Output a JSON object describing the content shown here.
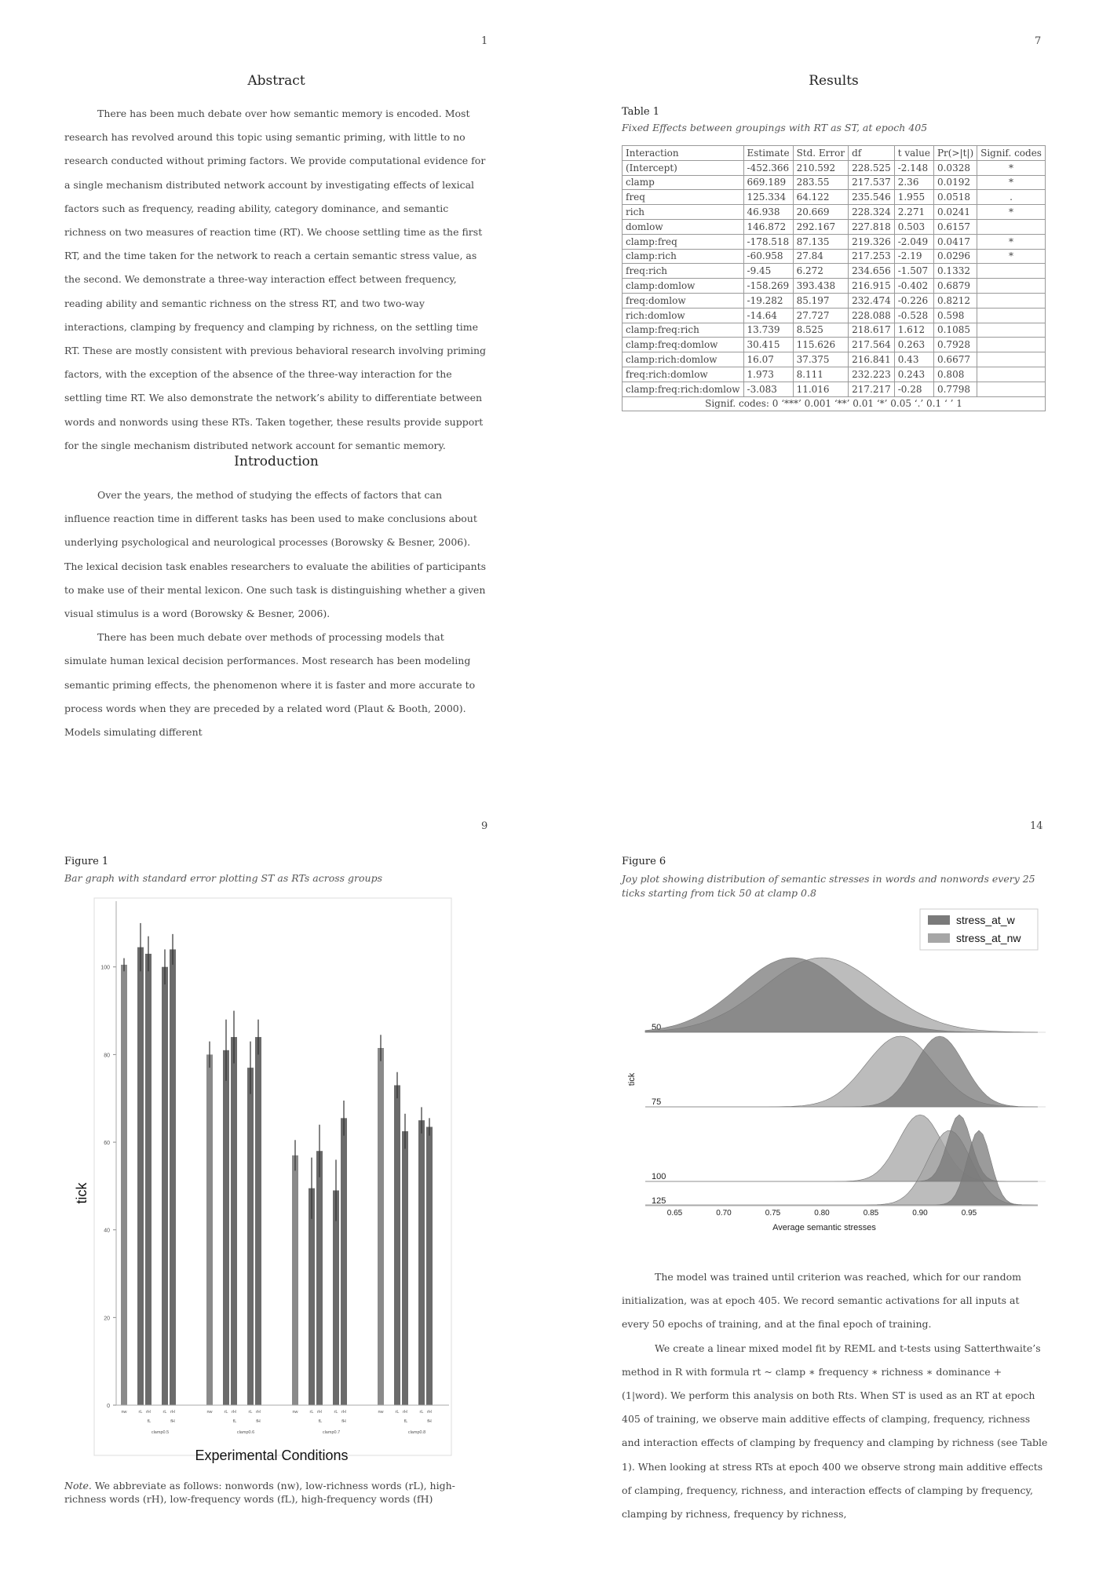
{
  "pages": [
    {
      "number": "1"
    },
    {
      "number": "7"
    },
    {
      "number": "9"
    },
    {
      "number": "14"
    }
  ],
  "abstract": {
    "heading": "Abstract",
    "text": "There has been much debate over how semantic memory is encoded. Most research has revolved around this topic using semantic priming, with little to no research conducted without priming factors. We provide computational evidence for a single mechanism distributed network account by investigating effects of lexical factors such as frequency, reading ability, category dominance, and semantic richness on two measures of reaction time (RT). We choose settling time as the first RT, and the time taken for the network to reach a certain semantic stress value, as the second. We demonstrate a three-way interaction effect between frequency, reading ability and semantic richness on the stress RT, and two two-way interactions, clamping by frequency and clamping by richness, on the settling time RT. These are mostly consistent with previous behavioral research involving priming factors, with the exception of the absence of the three-way interaction for the settling time RT. We also demonstrate the network’s ability to differentiate between words and nonwords using these RTs. Taken together, these results provide support for the single mechanism distributed network account for semantic memory."
  },
  "introduction": {
    "heading": "Introduction",
    "p1": "Over the years, the method of studying the effects of factors that can influence reaction time in different tasks has been used to make conclusions about underlying psychological and neurological processes (Borowsky & Besner, 2006). The lexical decision task enables researchers to evaluate the abilities of participants to make use of their mental lexicon. One such task is distinguishing whether a given visual stimulus is a word (Borowsky & Besner, 2006).",
    "p2": "There has been much debate over methods of processing models that simulate human lexical decision performances. Most research has been modeling semantic priming effects, the phenomenon where it is faster and more accurate to process words when they are preceded by a related word (Plaut & Booth, 2000). Models simulating different"
  },
  "results": {
    "heading": "Results",
    "table_label": "Table 1",
    "table_caption": "Fixed Effects between groupings with RT as ST, at epoch 405",
    "columns": [
      "Interaction",
      "Estimate",
      "Std. Error",
      "df",
      "t value",
      "Pr(>|t|)",
      "Signif. codes"
    ],
    "rows": [
      [
        "(Intercept)",
        "-452.366",
        "210.592",
        "228.525",
        "-2.148",
        "0.0328",
        "*"
      ],
      [
        "clamp",
        "669.189",
        "283.55",
        "217.537",
        "2.36",
        "0.0192",
        "*"
      ],
      [
        "freq",
        "125.334",
        "64.122",
        "235.546",
        "1.955",
        "0.0518",
        "."
      ],
      [
        "rich",
        "46.938",
        "20.669",
        "228.324",
        "2.271",
        "0.0241",
        "*"
      ],
      [
        "domlow",
        "146.872",
        "292.167",
        "227.818",
        "0.503",
        "0.6157",
        ""
      ],
      [
        "clamp:freq",
        "-178.518",
        "87.135",
        "219.326",
        "-2.049",
        "0.0417",
        "*"
      ],
      [
        "clamp:rich",
        "-60.958",
        "27.84",
        "217.253",
        "-2.19",
        "0.0296",
        "*"
      ],
      [
        "freq:rich",
        "-9.45",
        "6.272",
        "234.656",
        "-1.507",
        "0.1332",
        ""
      ],
      [
        "clamp:domlow",
        "-158.269",
        "393.438",
        "216.915",
        "-0.402",
        "0.6879",
        ""
      ],
      [
        "freq:domlow",
        "-19.282",
        "85.197",
        "232.474",
        "-0.226",
        "0.8212",
        ""
      ],
      [
        "rich:domlow",
        "-14.64",
        "27.727",
        "228.088",
        "-0.528",
        "0.598",
        ""
      ],
      [
        "clamp:freq:rich",
        "13.739",
        "8.525",
        "218.617",
        "1.612",
        "0.1085",
        ""
      ],
      [
        "clamp:freq:domlow",
        "30.415",
        "115.626",
        "217.564",
        "0.263",
        "0.7928",
        ""
      ],
      [
        "clamp:rich:domlow",
        "16.07",
        "37.375",
        "216.841",
        "0.43",
        "0.6677",
        ""
      ],
      [
        "freq:rich:domlow",
        "1.973",
        "8.111",
        "232.223",
        "0.243",
        "0.808",
        ""
      ],
      [
        "clamp:freq:rich:domlow",
        "-3.083",
        "11.016",
        "217.217",
        "-0.28",
        "0.7798",
        ""
      ]
    ],
    "signif_note": "Signif. codes: 0 ‘***’ 0.001 ‘**’ 0.01 ‘*’ 0.05 ‘.’ 0.1 ‘ ’ 1"
  },
  "figure1": {
    "label": "Figure 1",
    "caption": "Bar graph with standard error plotting ST as RTs across groups",
    "note_label": "Note.",
    "note": "We abbreviate as follows: nonwords (nw), low-richness words (rL), high-richness words (rH), low-frequency words (fL), high-frequency words (fH)"
  },
  "figure6": {
    "label": "Figure 6",
    "caption": "Joy plot showing distribution of semantic stresses in words and nonwords every 25 ticks starting from tick 50 at clamp 0.8"
  },
  "page14_text": {
    "p1": "The model was trained until criterion was reached, which for our random initialization, was at epoch 405. We record semantic activations for all inputs at every 50 epochs of training, and at the final epoch of training.",
    "p2": "We create a linear mixed model fit by REML and t-tests using Satterthwaite’s method in R with formula rt ~ clamp ∗ frequency ∗ richness ∗ dominance + (1|word). We perform this analysis on both Rts. When ST is used as an RT at epoch 405 of training, we observe main additive effects of clamping, frequency, richness and interaction effects of clamping by frequency and clamping by richness (see Table 1). When looking at stress RTs at epoch 400 we observe strong main additive effects of clamping, frequency, richness, and interaction effects of clamping by frequency, clamping by richness, frequency by richness,"
  },
  "chart_data": [
    {
      "type": "bar",
      "title": "",
      "xlabel": "Experimental Conditions",
      "ylabel": "tick",
      "ylim": [
        0,
        115
      ],
      "yticks": [
        0,
        20,
        40,
        60,
        80,
        100
      ],
      "group_labels": [
        "clamp0.5",
        "clamp0.6",
        "clamp0.7",
        "clamp0.8"
      ],
      "bar_labels": [
        "nw",
        "rL",
        "rH",
        "rL",
        "rH"
      ],
      "sub_labels": [
        "fL",
        "fH"
      ],
      "groups": [
        {
          "name": "clamp0.5",
          "values": [
            100.5,
            104.5,
            103,
            100,
            104
          ],
          "errors": [
            1.5,
            5.5,
            4,
            4,
            3.5
          ]
        },
        {
          "name": "clamp0.6",
          "values": [
            80,
            81,
            84,
            77,
            84
          ],
          "errors": [
            3,
            7,
            6,
            6,
            4
          ]
        },
        {
          "name": "clamp0.7",
          "values": [
            57,
            49.5,
            58,
            49,
            65.5
          ],
          "errors": [
            3.5,
            7,
            6,
            7,
            4
          ]
        },
        {
          "name": "clamp0.8",
          "values": [
            81.5,
            73,
            62.5,
            65,
            63.5
          ],
          "errors": [
            3,
            3,
            4,
            3,
            2
          ]
        }
      ],
      "colors": {
        "nw": "#8a8a8a",
        "word": "#6b6b6b"
      }
    },
    {
      "type": "area",
      "title": "",
      "xlabel": "Average semantic stresses",
      "ylabel": "tick",
      "x_ticks": [
        "0.65",
        "0.70",
        "0.75",
        "0.80",
        "0.85",
        "0.90",
        "0.95"
      ],
      "rows": [
        "50",
        "75",
        "100",
        "125"
      ],
      "legend": {
        "position": "top-right",
        "entries": [
          "stress_at_w",
          "stress_at_nw"
        ]
      },
      "series": [
        {
          "name": "stress_at_w",
          "color": "#7a7a7a",
          "peaks": [
            {
              "tick": 50,
              "mode": 0.77
            },
            {
              "tick": 75,
              "mode": 0.92
            },
            {
              "tick": 100,
              "mode": 0.94
            },
            {
              "tick": 125,
              "mode": 0.96
            }
          ]
        },
        {
          "name": "stress_at_nw",
          "color": "#a6a6a6",
          "peaks": [
            {
              "tick": 50,
              "mode": 0.8
            },
            {
              "tick": 75,
              "mode": 0.88
            },
            {
              "tick": 100,
              "mode": 0.9
            },
            {
              "tick": 125,
              "mode": 0.93
            }
          ]
        }
      ]
    }
  ]
}
